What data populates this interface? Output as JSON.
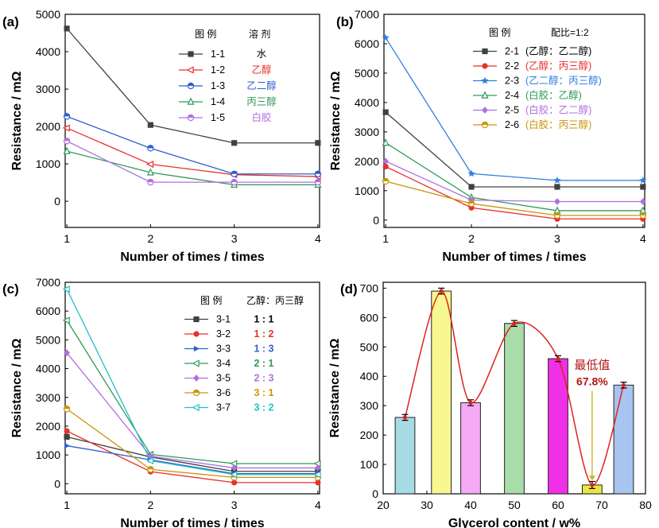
{
  "chart_data": [
    {
      "panel": "(a)",
      "type": "line",
      "xlabel": "Number of times / times",
      "ylabel": "Resistance / mΩ",
      "x": [
        1,
        2,
        3,
        4
      ],
      "xlim": [
        0.98,
        4.02
      ],
      "ylim": [
        -700,
        5000
      ],
      "xticks": [
        1,
        2,
        3,
        4
      ],
      "yticks": [
        0,
        1000,
        2000,
        3000,
        4000,
        5000
      ],
      "legend": {
        "head_id": "图 例",
        "head_name": "溶 剂",
        "placement": "top-right"
      },
      "series": [
        {
          "id": "1-1",
          "name": "水",
          "color": "#404040",
          "marker": "square",
          "values": [
            4620,
            2040,
            1560,
            1560
          ]
        },
        {
          "id": "1-2",
          "name": "乙醇",
          "color": "#e8302c",
          "marker": "tri-left",
          "values": [
            1960,
            990,
            710,
            660
          ]
        },
        {
          "id": "1-3",
          "name": "乙二醇",
          "color": "#2f5fd0",
          "marker": "circle-half",
          "values": [
            2270,
            1420,
            730,
            730
          ]
        },
        {
          "id": "1-4",
          "name": "丙三醇",
          "color": "#2e9a58",
          "marker": "tri-up",
          "values": [
            1340,
            770,
            440,
            440
          ]
        },
        {
          "id": "1-5",
          "name": "白胶",
          "color": "#b070e0",
          "marker": "circle-half",
          "values": [
            1610,
            510,
            510,
            510
          ]
        }
      ]
    },
    {
      "panel": "(b)",
      "type": "line",
      "xlabel": "Number of times / times",
      "ylabel": "Resistance / mΩ",
      "x": [
        1,
        2,
        3,
        4
      ],
      "xlim": [
        0.98,
        4.02
      ],
      "ylim": [
        -250,
        7000
      ],
      "xticks": [
        1,
        2,
        3,
        4
      ],
      "yticks": [
        0,
        1000,
        2000,
        3000,
        4000,
        5000,
        6000,
        7000
      ],
      "legend": {
        "head_id": "图 例",
        "head_name": "配比=1:2",
        "placement": "top-right"
      },
      "series": [
        {
          "id": "2-1",
          "name": "(乙醇：乙二醇)",
          "color": "#404040",
          "marker": "square",
          "values": [
            3670,
            1130,
            1130,
            1130
          ]
        },
        {
          "id": "2-2",
          "name": "(乙醇：丙三醇)",
          "color": "#e8302c",
          "marker": "circle",
          "values": [
            1820,
            420,
            40,
            40
          ]
        },
        {
          "id": "2-3",
          "name": "(乙二醇：丙三醇)",
          "color": "#2f7fe0",
          "marker": "star",
          "values": [
            6200,
            1580,
            1350,
            1350
          ]
        },
        {
          "id": "2-4",
          "name": "(白胶：乙醇)",
          "color": "#2e9a58",
          "marker": "tri-up",
          "values": [
            2630,
            770,
            320,
            320
          ]
        },
        {
          "id": "2-5",
          "name": "(白胶：乙二醇)",
          "color": "#b070e0",
          "marker": "diamond",
          "values": [
            2000,
            680,
            630,
            630
          ]
        },
        {
          "id": "2-6",
          "name": "(白胶：丙三醇)",
          "color": "#c8960a",
          "marker": "circle-half",
          "values": [
            1320,
            560,
            160,
            160
          ]
        }
      ]
    },
    {
      "panel": "(c)",
      "type": "line",
      "xlabel": "Number of times / times",
      "ylabel": "Resistance / mΩ",
      "x": [
        1,
        2,
        3,
        4
      ],
      "xlim": [
        0.98,
        4.02
      ],
      "ylim": [
        -350,
        7000
      ],
      "xticks": [
        1,
        2,
        3,
        4
      ],
      "yticks": [
        0,
        1000,
        2000,
        3000,
        4000,
        5000,
        6000,
        7000
      ],
      "legend": {
        "head_id": "图 例",
        "head_name": "乙醇：丙三醇",
        "placement": "top-right"
      },
      "series": [
        {
          "id": "3-1",
          "name": "1 : 1",
          "color": "#404040",
          "marker": "square",
          "values": [
            1630,
            930,
            430,
            430
          ]
        },
        {
          "id": "3-2",
          "name": "1 : 2",
          "color": "#e8302c",
          "marker": "circle",
          "values": [
            1830,
            420,
            40,
            40
          ]
        },
        {
          "id": "3-3",
          "name": "1 : 3",
          "color": "#2f5fd0",
          "marker": "tri-right",
          "values": [
            1320,
            830,
            350,
            350
          ]
        },
        {
          "id": "3-4",
          "name": "2 : 1",
          "color": "#2e9a58",
          "marker": "tri-left",
          "values": [
            5680,
            1020,
            700,
            700
          ]
        },
        {
          "id": "3-5",
          "name": "2 : 3",
          "color": "#b070e0",
          "marker": "diamond",
          "values": [
            4550,
            960,
            550,
            550
          ]
        },
        {
          "id": "3-6",
          "name": "3 : 1",
          "color": "#c8960a",
          "marker": "circle-half",
          "values": [
            2600,
            500,
            220,
            220
          ]
        },
        {
          "id": "3-7",
          "name": "3 : 2",
          "color": "#20c0c8",
          "marker": "tri-left",
          "values": [
            6760,
            800,
            320,
            320
          ]
        }
      ]
    },
    {
      "panel": "(d)",
      "type": "bar",
      "xlabel": "Glycerol content / w%",
      "ylabel": "Resistance / mΩ",
      "xlim": [
        20,
        80
      ],
      "ylim": [
        0,
        720
      ],
      "xticks": [
        20,
        30,
        40,
        50,
        60,
        70,
        80
      ],
      "yticks": [
        0,
        100,
        200,
        300,
        400,
        500,
        600,
        700
      ],
      "x": [
        25,
        33.3,
        40,
        50,
        60,
        67.8,
        75
      ],
      "values": [
        260,
        690,
        310,
        580,
        460,
        30,
        370
      ],
      "errors": [
        10,
        10,
        10,
        10,
        10,
        12,
        10
      ],
      "colors": [
        "#a8dce4",
        "#f8f890",
        "#f4aaf4",
        "#a8dca8",
        "#f030e8",
        "#e8e840",
        "#a8c4f0"
      ],
      "annotation": {
        "text_line1": "最低值",
        "text_line2": "67.8%",
        "color": "#b01818"
      },
      "curve_color": "#e02020"
    }
  ]
}
